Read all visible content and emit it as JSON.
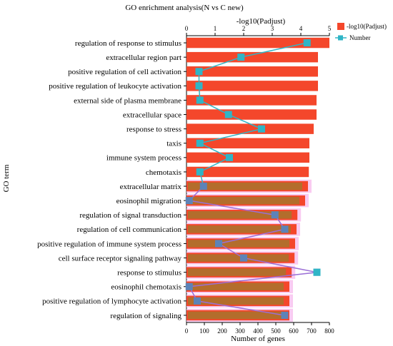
{
  "chart_data": {
    "type": "bar",
    "title": "GO enrichment analysis(N  vs  C  new)",
    "ylabel": "GO term",
    "xlabel_bottom": "Number of genes",
    "xlabel_top": "-log10(Padjust)",
    "xlim_bottom": [
      0,
      800
    ],
    "xlim_top": [
      0,
      5
    ],
    "xticks_bottom": [
      "0",
      "100",
      "200",
      "300",
      "400",
      "500",
      "600",
      "700",
      "800"
    ],
    "xticks_top": [
      "0",
      "1",
      "2",
      "3",
      "4",
      "5"
    ],
    "categories": [
      "regulation of response to stimulus",
      "extracellular region part",
      "positive regulation of cell activation",
      "positive regulation of leukocyte activation",
      "external side of plasma membrane",
      "extracellular space",
      "response to stress",
      "taxis",
      "immune system process",
      "chemotaxis",
      "extracellular matrix",
      "eosinophil migration",
      "regulation of signal transduction",
      "regulation of cell communication",
      "positive regulation of immune system process",
      "cell surface receptor signaling pathway",
      "response to stimulus",
      "eosinophil chemotaxis",
      "positive regulation of lymphocyte activation",
      "regulation of signaling"
    ],
    "series": [
      {
        "name": "-log10(Padjust)",
        "type": "bar",
        "axis": "top",
        "color": "#f4472b",
        "values": [
          5.0,
          4.6,
          4.6,
          4.6,
          4.55,
          4.55,
          4.45,
          4.3,
          4.3,
          4.28,
          4.25,
          4.15,
          3.88,
          3.85,
          3.8,
          3.78,
          3.68,
          3.6,
          3.6,
          3.6
        ]
      },
      {
        "name": "Number",
        "type": "line",
        "axis": "bottom",
        "color": "#2fb5c6",
        "values": [
          675,
          305,
          70,
          70,
          75,
          235,
          420,
          75,
          240,
          75,
          95,
          15,
          495,
          550,
          180,
          320,
          730,
          15,
          60,
          550
        ]
      }
    ],
    "legend": "top-right",
    "grid": false
  },
  "colors": {
    "bar": "#f4472b",
    "line": "#2fb5c6",
    "overlay_bar": "#7e8c2e",
    "overlay_glow": "#f8c2ef",
    "overlay_line": "#9b6fd6",
    "overlay_marker": "#5c83b8"
  }
}
